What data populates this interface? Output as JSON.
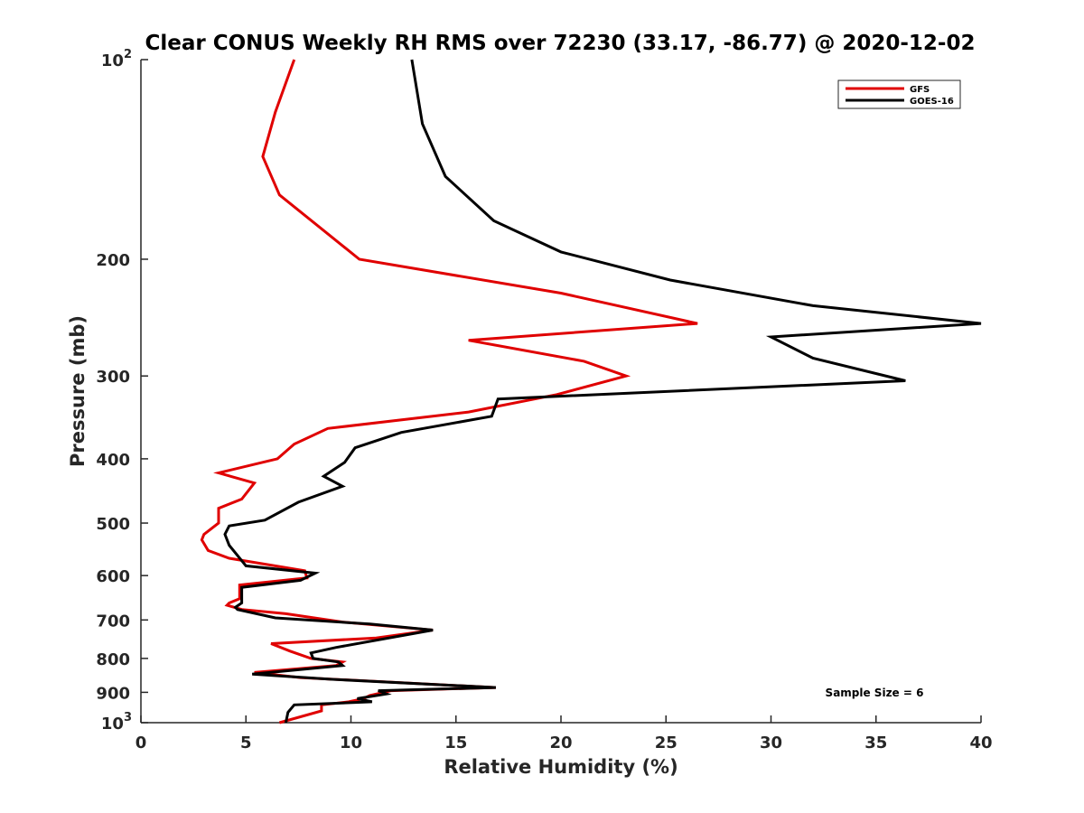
{
  "chart_data": {
    "type": "line",
    "title": "Clear CONUS Weekly RH RMS over 72230 (33.17, -86.77) @ 2020-12-02",
    "xlabel": "Relative Humidity (%)",
    "ylabel": "Pressure (mb)",
    "xlim": [
      0,
      40
    ],
    "ylim": [
      100,
      1000
    ],
    "yscale": "log",
    "yreversed": true,
    "xticks": [
      0,
      5,
      10,
      15,
      20,
      25,
      30,
      35,
      40
    ],
    "xtick_labels": [
      "0",
      "5",
      "10",
      "15",
      "20",
      "25",
      "30",
      "35",
      "40"
    ],
    "yticks": [
      {
        "value": 100,
        "base": "10",
        "exp": "2"
      },
      {
        "value": 200,
        "base": "200",
        "exp": ""
      },
      {
        "value": 300,
        "base": "300",
        "exp": ""
      },
      {
        "value": 400,
        "base": "400",
        "exp": ""
      },
      {
        "value": 500,
        "base": "500",
        "exp": ""
      },
      {
        "value": 600,
        "base": "600",
        "exp": ""
      },
      {
        "value": 700,
        "base": "700",
        "exp": ""
      },
      {
        "value": 800,
        "base": "800",
        "exp": ""
      },
      {
        "value": 900,
        "base": "900",
        "exp": ""
      },
      {
        "value": 1000,
        "base": "10",
        "exp": "3"
      }
    ],
    "legend_position": "top-right",
    "annotation": "Sample Size = 6",
    "series": [
      {
        "name": "GFS",
        "color": "#e00000",
        "x": [
          7.3,
          6.4,
          5.8,
          6.6,
          10.4,
          20.0,
          26.5,
          15.6,
          21.1,
          23.1,
          19.8,
          15.6,
          8.9,
          7.3,
          6.5,
          3.7,
          5.4,
          4.8,
          3.7,
          3.7,
          3.0,
          2.9,
          3.2,
          4.2,
          7.8,
          7.9,
          4.7,
          4.7,
          4.2,
          4.1,
          4.8,
          6.9,
          9.6,
          13.9,
          11.2,
          6.2,
          7.1,
          8.1,
          9.6,
          9.3,
          5.4,
          7.6,
          16.9,
          11.9,
          10.9,
          10.6,
          9.9,
          8.6,
          8.6,
          6.6
        ],
        "y": [
          100,
          120,
          140,
          160,
          200,
          225,
          250,
          265,
          285,
          300,
          320,
          340,
          360,
          380,
          400,
          420,
          435,
          460,
          475,
          500,
          520,
          530,
          550,
          565,
          590,
          605,
          620,
          650,
          660,
          665,
          675,
          685,
          705,
          725,
          745,
          760,
          780,
          800,
          810,
          820,
          840,
          855,
          885,
          895,
          910,
          920,
          930,
          940,
          960,
          1000
        ]
      },
      {
        "name": "GOES-16",
        "color": "#000000",
        "x": [
          12.9,
          13.4,
          14.5,
          16.8,
          20.0,
          25.2,
          32.0,
          40.0,
          30.0,
          32.0,
          36.4,
          17.0,
          16.7,
          12.4,
          10.2,
          9.7,
          8.7,
          9.6,
          7.5,
          5.9,
          4.2,
          4.0,
          4.2,
          5.0,
          8.3,
          7.6,
          4.8,
          4.8,
          4.5,
          4.6,
          6.4,
          10.9,
          13.9,
          9.3,
          8.1,
          8.2,
          9.4,
          9.6,
          5.3,
          9.0,
          16.9,
          11.3,
          11.7,
          10.3,
          11.0,
          7.3,
          7.0,
          6.9
        ],
        "y": [
          100,
          125,
          150,
          175,
          195,
          215,
          235,
          250,
          262,
          282,
          305,
          325,
          345,
          365,
          385,
          405,
          425,
          440,
          465,
          495,
          505,
          520,
          540,
          580,
          595,
          610,
          625,
          660,
          670,
          675,
          695,
          710,
          725,
          770,
          785,
          800,
          810,
          820,
          845,
          860,
          885,
          895,
          905,
          920,
          930,
          940,
          965,
          1000
        ]
      }
    ]
  }
}
